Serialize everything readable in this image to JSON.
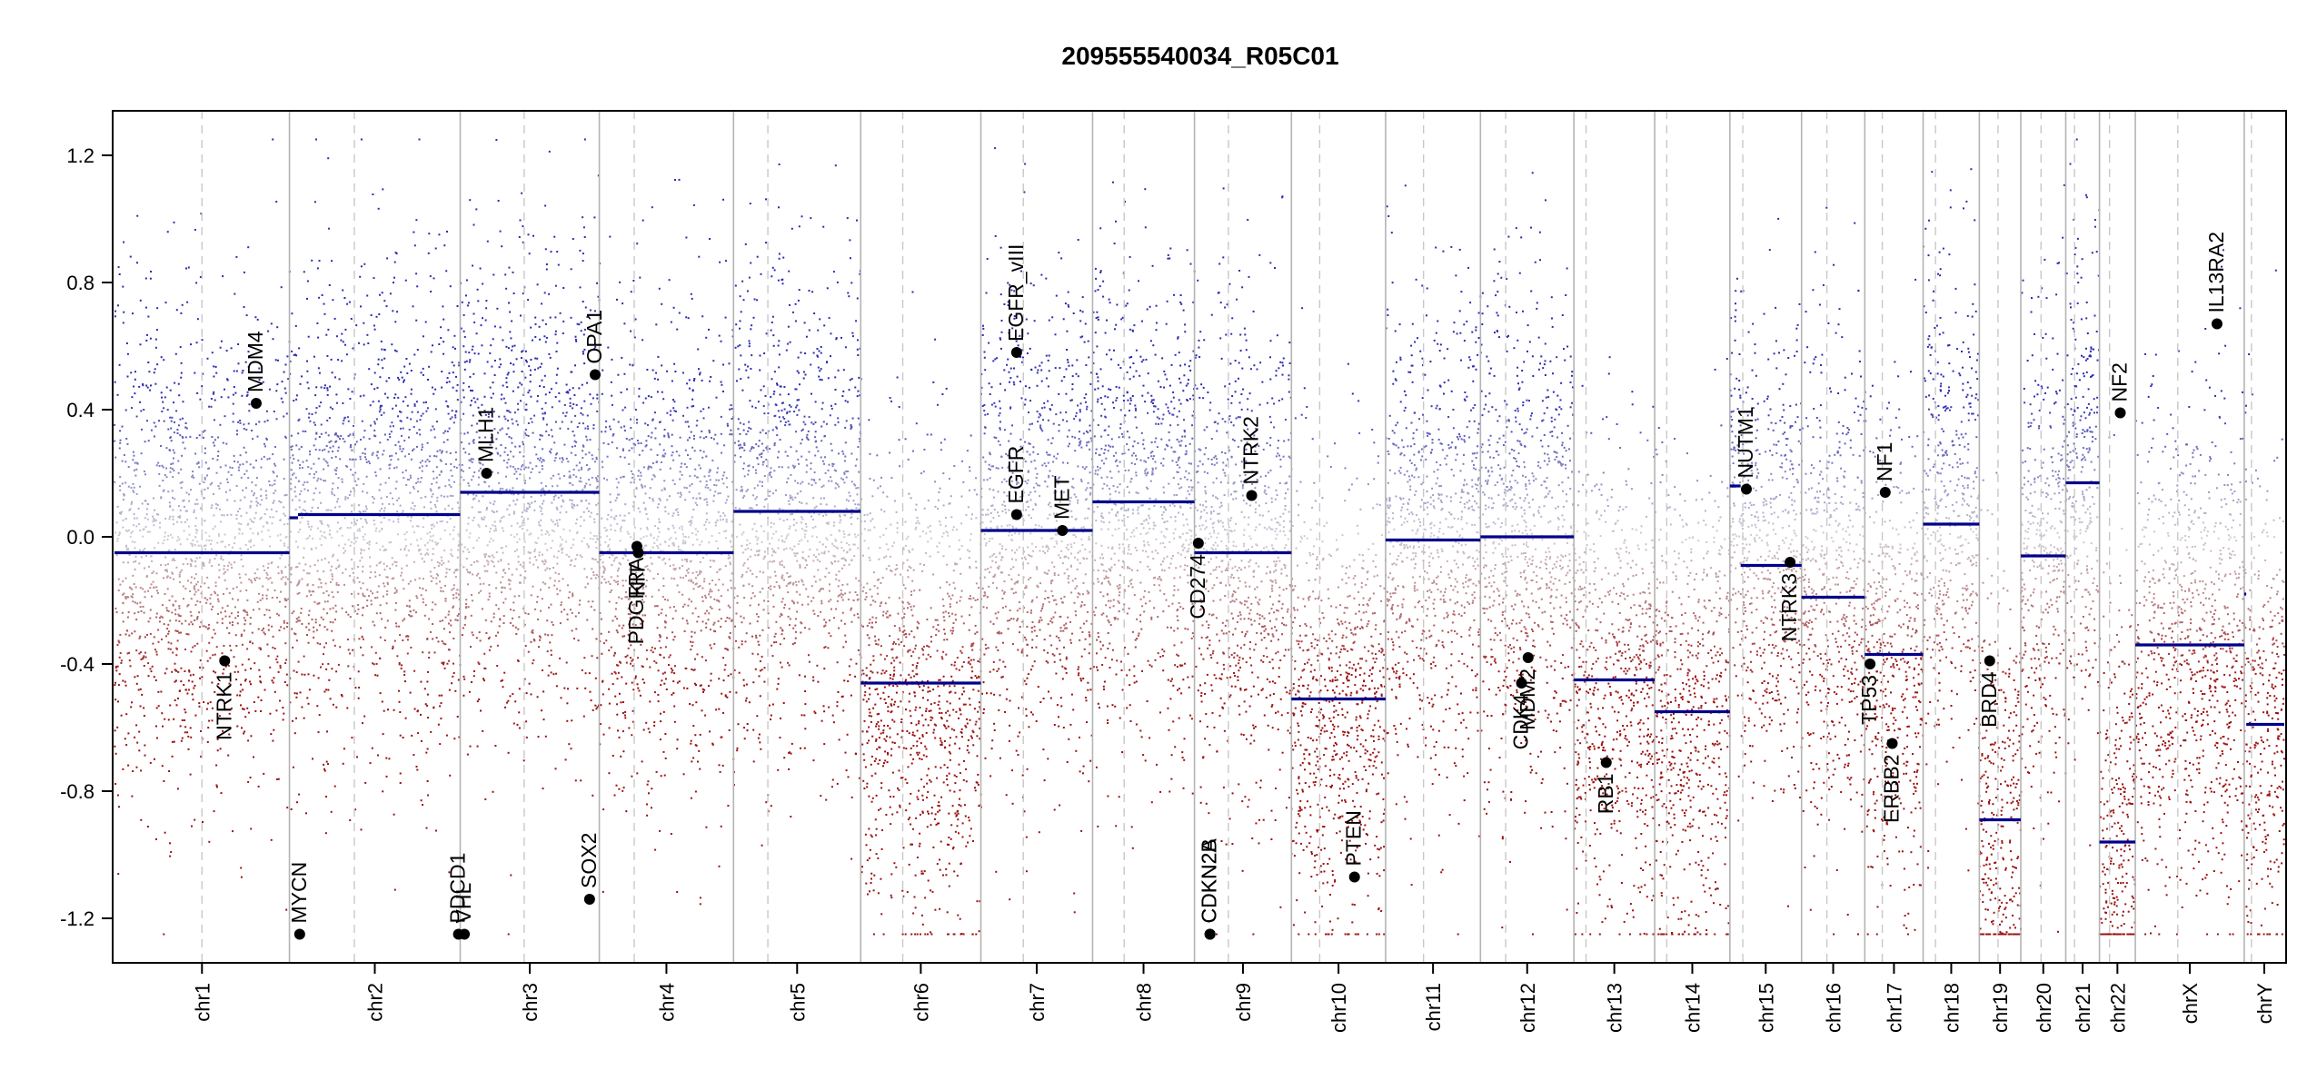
{
  "chart_data": {
    "type": "scatter",
    "title": "209555540034_R05C01",
    "xlabel": "",
    "ylabel": "",
    "ylim": [
      -1.34,
      1.34
    ],
    "yticks": [
      -1.2,
      -0.8,
      -0.4,
      0.0,
      0.4,
      0.8,
      1.2
    ],
    "ytick_labels": [
      "-1.2",
      "-0.8",
      "-0.4",
      "0.0",
      "0.4",
      "0.8",
      "1.2"
    ],
    "grid": false,
    "colors": {
      "gain": "#2b2bb0",
      "loss": "#9b1010",
      "neutral": "#c8c8c8",
      "segment": "#00008b",
      "chrom_boundary": "#b4b4b4",
      "centromere": "#c8c8c8",
      "gene_point": "#000000"
    },
    "chromosomes": [
      {
        "name": "chr1",
        "size": 249,
        "cen": 0.5
      },
      {
        "name": "chr2",
        "size": 243,
        "cen": 0.38
      },
      {
        "name": "chr3",
        "size": 198,
        "cen": 0.46
      },
      {
        "name": "chr4",
        "size": 191,
        "cen": 0.26
      },
      {
        "name": "chr5",
        "size": 181,
        "cen": 0.27
      },
      {
        "name": "chr6",
        "size": 171,
        "cen": 0.35
      },
      {
        "name": "chr7",
        "size": 159,
        "cen": 0.38
      },
      {
        "name": "chr8",
        "size": 145,
        "cen": 0.31
      },
      {
        "name": "chr9",
        "size": 138,
        "cen": 0.35
      },
      {
        "name": "chr10",
        "size": 134,
        "cen": 0.3
      },
      {
        "name": "chr11",
        "size": 135,
        "cen": 0.4
      },
      {
        "name": "chr12",
        "size": 133,
        "cen": 0.27
      },
      {
        "name": "chr13",
        "size": 115,
        "cen": 0.15
      },
      {
        "name": "chr14",
        "size": 107,
        "cen": 0.16
      },
      {
        "name": "chr15",
        "size": 102,
        "cen": 0.18
      },
      {
        "name": "chr16",
        "size": 90,
        "cen": 0.4
      },
      {
        "name": "chr17",
        "size": 83,
        "cen": 0.3
      },
      {
        "name": "chr18",
        "size": 80,
        "cen": 0.22
      },
      {
        "name": "chr19",
        "size": 59,
        "cen": 0.45
      },
      {
        "name": "chr20",
        "size": 64,
        "cen": 0.45
      },
      {
        "name": "chr21",
        "size": 48,
        "cen": 0.26
      },
      {
        "name": "chr22",
        "size": 51,
        "cen": 0.28
      },
      {
        "name": "chrX",
        "size": 155,
        "cen": 0.39
      },
      {
        "name": "chrY",
        "size": 57,
        "cen": 0.18
      }
    ],
    "segments": [
      {
        "chr": "chr1",
        "from": 0.0,
        "to": 1.0,
        "value": -0.05
      },
      {
        "chr": "chr2",
        "from": 0.0,
        "to": 0.05,
        "value": 0.06
      },
      {
        "chr": "chr2",
        "from": 0.05,
        "to": 1.0,
        "value": 0.07
      },
      {
        "chr": "chr3",
        "from": 0.0,
        "to": 1.0,
        "value": 0.14
      },
      {
        "chr": "chr4",
        "from": 0.0,
        "to": 1.0,
        "value": -0.05
      },
      {
        "chr": "chr5",
        "from": 0.0,
        "to": 1.0,
        "value": 0.08
      },
      {
        "chr": "chr6",
        "from": 0.0,
        "to": 1.0,
        "value": -0.46
      },
      {
        "chr": "chr7",
        "from": 0.0,
        "to": 1.0,
        "value": 0.02
      },
      {
        "chr": "chr8",
        "from": 0.0,
        "to": 1.0,
        "value": 0.11
      },
      {
        "chr": "chr9",
        "from": 0.0,
        "to": 1.0,
        "value": -0.05
      },
      {
        "chr": "chr10",
        "from": 0.0,
        "to": 1.0,
        "value": -0.51
      },
      {
        "chr": "chr11",
        "from": 0.0,
        "to": 1.0,
        "value": -0.01
      },
      {
        "chr": "chr12",
        "from": 0.0,
        "to": 1.0,
        "value": 0.0
      },
      {
        "chr": "chr13",
        "from": 0.0,
        "to": 1.0,
        "value": -0.45
      },
      {
        "chr": "chr14",
        "from": 0.0,
        "to": 1.0,
        "value": -0.55
      },
      {
        "chr": "chr15",
        "from": 0.0,
        "to": 0.15,
        "value": 0.16
      },
      {
        "chr": "chr15",
        "from": 0.15,
        "to": 1.0,
        "value": -0.09
      },
      {
        "chr": "chr16",
        "from": 0.0,
        "to": 1.0,
        "value": -0.19
      },
      {
        "chr": "chr17",
        "from": 0.0,
        "to": 1.0,
        "value": -0.37
      },
      {
        "chr": "chr18",
        "from": 0.0,
        "to": 1.0,
        "value": 0.04
      },
      {
        "chr": "chr19",
        "from": 0.0,
        "to": 1.0,
        "value": -0.89
      },
      {
        "chr": "chr20",
        "from": 0.0,
        "to": 1.0,
        "value": -0.06
      },
      {
        "chr": "chr21",
        "from": 0.0,
        "to": 1.0,
        "value": 0.17
      },
      {
        "chr": "chr22",
        "from": 0.0,
        "to": 1.0,
        "value": -0.96
      },
      {
        "chr": "chrX",
        "from": 0.0,
        "to": 1.0,
        "value": -0.34
      },
      {
        "chr": "chrY",
        "from": 0.0,
        "to": 0.05,
        "value": -0.18
      },
      {
        "chr": "chrY",
        "from": 0.05,
        "to": 1.0,
        "value": -0.59
      }
    ],
    "genes": [
      {
        "name": "NTRK1",
        "chr": "chr1",
        "pos": 0.63,
        "value": -0.39,
        "label": "below"
      },
      {
        "name": "MDM4",
        "chr": "chr1",
        "pos": 0.81,
        "value": 0.42,
        "label": "above"
      },
      {
        "name": "MYCN",
        "chr": "chr2",
        "pos": 0.06,
        "value": -1.25,
        "label": "above"
      },
      {
        "name": "PDCD1",
        "chr": "chr2",
        "pos": 0.99,
        "value": -1.25,
        "label": "above"
      },
      {
        "name": "VHL",
        "chr": "chr3",
        "pos": 0.03,
        "value": -1.25,
        "label": "above"
      },
      {
        "name": "MLH1",
        "chr": "chr3",
        "pos": 0.19,
        "value": 0.2,
        "label": "above"
      },
      {
        "name": "SOX2",
        "chr": "chr3",
        "pos": 0.93,
        "value": -1.14,
        "label": "above"
      },
      {
        "name": "OPA1",
        "chr": "chr3",
        "pos": 0.97,
        "value": 0.51,
        "label": "above"
      },
      {
        "name": "PDGFRA",
        "chr": "chr4",
        "pos": 0.28,
        "value": -0.03,
        "label": "below"
      },
      {
        "name": "KIT",
        "chr": "chr4",
        "pos": 0.29,
        "value": -0.05,
        "label": "below"
      },
      {
        "name": "EGFR_vIII",
        "chr": "chr7",
        "pos": 0.32,
        "value": 0.58,
        "label": "above"
      },
      {
        "name": "EGFR",
        "chr": "chr7",
        "pos": 0.32,
        "value": 0.07,
        "label": "above"
      },
      {
        "name": "MET",
        "chr": "chr7",
        "pos": 0.73,
        "value": 0.02,
        "label": "above"
      },
      {
        "name": "CD274",
        "chr": "chr9",
        "pos": 0.04,
        "value": -0.02,
        "label": "below"
      },
      {
        "name": "CDKN2A",
        "chr": "chr9",
        "pos": 0.16,
        "value": -1.25,
        "label": "above"
      },
      {
        "name": "CDKN2B",
        "chr": "chr9",
        "pos": 0.16,
        "value": -1.25,
        "label": "above"
      },
      {
        "name": "NTRK2",
        "chr": "chr9",
        "pos": 0.59,
        "value": 0.13,
        "label": "above"
      },
      {
        "name": "PTEN",
        "chr": "chr10",
        "pos": 0.67,
        "value": -1.07,
        "label": "above"
      },
      {
        "name": "CDK4",
        "chr": "chr12",
        "pos": 0.44,
        "value": -0.46,
        "label": "below"
      },
      {
        "name": "MDM2",
        "chr": "chr12",
        "pos": 0.51,
        "value": -0.38,
        "label": "below"
      },
      {
        "name": "RB1",
        "chr": "chr13",
        "pos": 0.4,
        "value": -0.71,
        "label": "below"
      },
      {
        "name": "NUTM1",
        "chr": "chr15",
        "pos": 0.23,
        "value": 0.15,
        "label": "above"
      },
      {
        "name": "NTRK3",
        "chr": "chr15",
        "pos": 0.84,
        "value": -0.08,
        "label": "below"
      },
      {
        "name": "TP53",
        "chr": "chr17",
        "pos": 0.09,
        "value": -0.4,
        "label": "below"
      },
      {
        "name": "NF1",
        "chr": "chr17",
        "pos": 0.35,
        "value": 0.14,
        "label": "above"
      },
      {
        "name": "ERBB2",
        "chr": "chr17",
        "pos": 0.47,
        "value": -0.65,
        "label": "below"
      },
      {
        "name": "BRD4",
        "chr": "chr19",
        "pos": 0.25,
        "value": -0.39,
        "label": "below"
      },
      {
        "name": "NF2",
        "chr": "chr22",
        "pos": 0.58,
        "value": 0.39,
        "label": "above"
      },
      {
        "name": "IL13RA2",
        "chr": "chrX",
        "pos": 0.75,
        "value": 0.67,
        "label": "above"
      }
    ]
  }
}
